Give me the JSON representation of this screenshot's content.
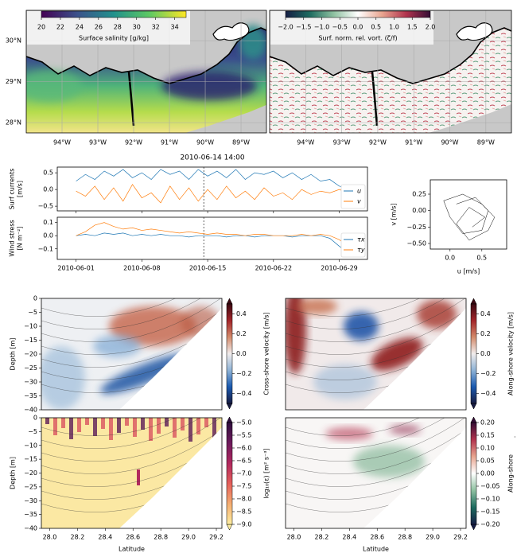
{
  "chart_data": [
    {
      "type": "map",
      "xlim": [
        -95,
        -88.29
      ],
      "ylim": [
        27.75,
        30.74
      ],
      "xticks": [
        {
          "value": -94,
          "label": "94°W"
        },
        {
          "value": -93,
          "label": "93°W"
        },
        {
          "value": -92,
          "label": "92°W"
        },
        {
          "value": -91,
          "label": "91°W"
        },
        {
          "value": -90,
          "label": "90°W"
        },
        {
          "value": -89,
          "label": "89°W"
        }
      ],
      "yticks": [
        {
          "value": 28,
          "label": "28°N"
        },
        {
          "value": 29,
          "label": "29°N"
        },
        {
          "value": 30,
          "label": "30°N"
        }
      ],
      "colorbar": {
        "label": "Surface salinity [g/kg]",
        "lim": [
          20,
          35.2
        ],
        "ticks": [
          20,
          22,
          24,
          26,
          28,
          30,
          32,
          34
        ],
        "colors": [
          "#440154",
          "#3b528b",
          "#21918c",
          "#5ec962",
          "#fde725"
        ]
      }
    },
    {
      "type": "map",
      "xlim": [
        -95,
        -88.29
      ],
      "xticks": [
        {
          "value": -94,
          "label": "94°W"
        },
        {
          "value": -93,
          "label": "93°W"
        },
        {
          "value": -92,
          "label": "92°W"
        },
        {
          "value": -91,
          "label": "91°W"
        },
        {
          "value": -90,
          "label": "90°W"
        },
        {
          "value": -89,
          "label": "89°W"
        }
      ],
      "colorbar": {
        "label": "Surf. norm. rel. vort. (ζ/f)",
        "lim": [
          -2,
          2
        ],
        "ticks": [
          {
            "value": -2,
            "label": "−2.0"
          },
          {
            "value": -1.5,
            "label": "−1.5"
          },
          {
            "value": -1,
            "label": "−1.0"
          },
          {
            "value": -0.5,
            "label": "−0.5"
          },
          {
            "value": 0,
            "label": "0.0"
          },
          0.5,
          {
            "value": 1,
            "label": "1.0"
          },
          1.5,
          {
            "value": 2,
            "label": "2.0"
          }
        ],
        "colors": [
          "#151d44",
          "#1d6b5f",
          "#8fc1a1",
          "#ffffff",
          "#e8a48f",
          "#b1334e",
          "#340d35"
        ]
      }
    },
    {
      "type": "line",
      "title": "2010-06-14 14:00",
      "ylabel": [
        "Surf currents",
        "[m/s]"
      ],
      "legend": "lower right",
      "xlim": [
        "2010-05-30",
        "2010-07-02"
      ],
      "ylim": [
        -0.64,
        0.67
      ],
      "yticks": [
        0.5,
        {
          "value": 0,
          "label": "0.0"
        },
        {
          "value": -0.5,
          "label": "−0.5"
        }
      ],
      "x": [
        "2010-06-01",
        "2010-06-02",
        "2010-06-03",
        "2010-06-04",
        "2010-06-05",
        "2010-06-06",
        "2010-06-07",
        "2010-06-08",
        "2010-06-09",
        "2010-06-10",
        "2010-06-11",
        "2010-06-12",
        "2010-06-13",
        "2010-06-14",
        "2010-06-15",
        "2010-06-16",
        "2010-06-17",
        "2010-06-18",
        "2010-06-19",
        "2010-06-20",
        "2010-06-21",
        "2010-06-22",
        "2010-06-23",
        "2010-06-24",
        "2010-06-25",
        "2010-06-26",
        "2010-06-27",
        "2010-06-28",
        "2010-06-29",
        "2010-06-30",
        "2010-07-01"
      ],
      "series": [
        {
          "name": "u",
          "color": "#1f77b4",
          "values": [
            0.25,
            0.45,
            0.3,
            0.55,
            0.4,
            0.6,
            0.35,
            0.5,
            0.3,
            0.6,
            0.45,
            0.55,
            0.3,
            0.6,
            0.4,
            0.55,
            0.35,
            0.6,
            0.3,
            0.5,
            0.45,
            0.55,
            0.35,
            0.5,
            0.3,
            0.45,
            0.25,
            0.3,
            0.1,
            0.05,
            -0.05
          ]
        },
        {
          "name": "v",
          "color": "#ff7f0e",
          "values": [
            -0.05,
            -0.2,
            0.1,
            -0.3,
            0.05,
            -0.35,
            0.15,
            -0.25,
            -0.1,
            -0.4,
            0.1,
            -0.3,
            0.05,
            -0.35,
            0.0,
            -0.3,
            0.1,
            -0.25,
            -0.05,
            -0.3,
            0.05,
            -0.2,
            -0.1,
            -0.3,
            0.0,
            -0.15,
            -0.05,
            -0.1,
            0.0,
            -0.1,
            -0.05
          ]
        }
      ]
    },
    {
      "type": "line",
      "ylabel": [
        "Wind stress",
        "[N m⁻²]"
      ],
      "legend": "lower right",
      "xlim": [
        "2010-05-30",
        "2010-07-02"
      ],
      "ylim": [
        -0.18,
        0.14
      ],
      "yticks": [
        0.1,
        {
          "value": 0,
          "label": "0.0"
        },
        {
          "value": -0.1,
          "label": "−0.1"
        }
      ],
      "xticks": [
        "2010-06-01",
        "2010-06-08",
        "2010-06-15",
        "2010-06-22",
        "2010-06-29"
      ],
      "x": [
        "2010-06-01",
        "2010-06-02",
        "2010-06-03",
        "2010-06-04",
        "2010-06-05",
        "2010-06-06",
        "2010-06-07",
        "2010-06-08",
        "2010-06-09",
        "2010-06-10",
        "2010-06-11",
        "2010-06-12",
        "2010-06-13",
        "2010-06-14",
        "2010-06-15",
        "2010-06-16",
        "2010-06-17",
        "2010-06-18",
        "2010-06-19",
        "2010-06-20",
        "2010-06-21",
        "2010-06-22",
        "2010-06-23",
        "2010-06-24",
        "2010-06-25",
        "2010-06-26",
        "2010-06-27",
        "2010-06-28",
        "2010-06-29",
        "2010-06-30",
        "2010-07-01"
      ],
      "series": [
        {
          "name": "τx",
          "color": "#1f77b4",
          "values": [
            0.0,
            0.01,
            0.0,
            0.02,
            0.01,
            0.02,
            0.0,
            0.01,
            0.0,
            0.01,
            0.0,
            0.0,
            -0.01,
            0.0,
            0.0,
            0.0,
            -0.01,
            0.0,
            0.0,
            -0.01,
            0.0,
            0.0,
            0.0,
            -0.01,
            0.0,
            0.0,
            0.0,
            -0.02,
            -0.08,
            -0.13,
            -0.12
          ]
        },
        {
          "name": "τy",
          "color": "#ff7f0e",
          "values": [
            0.0,
            0.03,
            0.08,
            0.1,
            0.07,
            0.05,
            0.06,
            0.04,
            0.05,
            0.04,
            0.03,
            0.02,
            0.03,
            0.02,
            0.01,
            0.02,
            0.01,
            0.01,
            0.0,
            0.01,
            0.01,
            0.0,
            0.0,
            0.0,
            0.01,
            0.0,
            0.01,
            0.0,
            -0.03,
            -0.08,
            -0.1
          ]
        }
      ]
    },
    {
      "type": "line",
      "xlabel": "u [m/s]",
      "ylabel": [
        "v [m/s]"
      ],
      "xlim": [
        -0.31,
        0.89
      ],
      "ylim": [
        -0.585,
        0.468
      ],
      "xticks": [
        {
          "value": 0,
          "label": "0.0"
        },
        0.5
      ],
      "yticks": [
        0.25,
        {
          "value": 0,
          "label": "0.00"
        },
        {
          "value": -0.25,
          "label": "−0.25"
        },
        {
          "value": -0.5,
          "label": "−0.50"
        }
      ],
      "x": [
        0.1,
        0.4,
        0.6,
        0.5,
        0.2,
        0.0,
        -0.1,
        0.2,
        0.5,
        0.7,
        0.6,
        0.3,
        0.1,
        0.3,
        0.55,
        0.35
      ],
      "series": [
        {
          "color": "#000000",
          "values": [
            0.1,
            0.2,
            0.0,
            -0.3,
            -0.35,
            -0.1,
            0.15,
            0.25,
            0.1,
            -0.1,
            -0.3,
            -0.45,
            -0.2,
            0.05,
            -0.1,
            -0.25
          ]
        }
      ]
    },
    {
      "type": "heatmap",
      "ylabel": "Depth [m]",
      "ylim": [
        -40,
        0
      ],
      "yticks": [
        0,
        {
          "value": -5,
          "label": "−5"
        },
        {
          "value": -10,
          "label": "−10"
        },
        {
          "value": -15,
          "label": "−15"
        },
        {
          "value": -20,
          "label": "−20"
        },
        {
          "value": -25,
          "label": "−25"
        },
        {
          "value": -30,
          "label": "−30"
        },
        {
          "value": -35,
          "label": "−35"
        },
        {
          "value": -40,
          "label": "−40"
        }
      ],
      "colorbar": {
        "label": "Cross-shore velocity [m/s]",
        "lim": [
          -0.5,
          0.5
        ],
        "ticks": [
          0.4,
          0.2,
          {
            "value": 0,
            "label": "0.0"
          },
          {
            "value": -0.2,
            "label": "−0.2"
          },
          {
            "value": -0.4,
            "label": "−0.4"
          }
        ],
        "colors": [
          "#181c43",
          "#1a5ab0",
          "#8fb3d6",
          "#f1ecec",
          "#d38a6b",
          "#a3252a",
          "#3c0912"
        ]
      }
    },
    {
      "type": "heatmap",
      "colorbar": {
        "label": "Along-shore velocity [m/s]",
        "lim": [
          -0.5,
          0.5
        ],
        "ticks": [
          0.4,
          0.2,
          {
            "value": 0,
            "label": "0.0"
          },
          {
            "value": -0.2,
            "label": "−0.2"
          },
          {
            "value": -0.4,
            "label": "−0.4"
          }
        ],
        "colors": [
          "#181c43",
          "#1a5ab0",
          "#8fb3d6",
          "#f1ecec",
          "#d38a6b",
          "#a3252a",
          "#3c0912"
        ]
      }
    },
    {
      "type": "heatmap",
      "ylabel": "Depth [m]",
      "xlabel": "Latitude",
      "xlim": [
        27.94,
        29.24
      ],
      "ylim": [
        -40,
        0
      ],
      "xticks": [
        {
          "value": 28,
          "label": "28.0"
        },
        28.2,
        28.4,
        28.6,
        28.8,
        {
          "value": 29,
          "label": "29.0"
        },
        29.2
      ],
      "yticks": [
        0,
        {
          "value": -5,
          "label": "−5"
        },
        {
          "value": -10,
          "label": "−10"
        },
        {
          "value": -15,
          "label": "−15"
        },
        {
          "value": -20,
          "label": "−20"
        },
        {
          "value": -25,
          "label": "−25"
        },
        {
          "value": -30,
          "label": "−30"
        },
        {
          "value": -35,
          "label": "−35"
        },
        {
          "value": -40,
          "label": "−40"
        }
      ],
      "colorbar": {
        "label": "log₁₀(ε) [m² s⁻³]",
        "lim": [
          -9,
          -5
        ],
        "ticks": [
          {
            "value": -5,
            "label": "−5.0"
          },
          {
            "value": -5.5,
            "label": "−5.5"
          },
          {
            "value": -6,
            "label": "−6.0"
          },
          {
            "value": -6.5,
            "label": "−6.5"
          },
          {
            "value": -7,
            "label": "−7.0"
          },
          {
            "value": -7.5,
            "label": "−7.5"
          },
          {
            "value": -8,
            "label": "−8.0"
          },
          {
            "value": -8.5,
            "label": "−8.5"
          },
          {
            "value": -9,
            "label": "−9.0"
          }
        ],
        "colors": [
          "#fdeda0",
          "#f4ad71",
          "#e5605b",
          "#b2285f",
          "#6d1a5c",
          "#2f0f3d"
        ]
      }
    },
    {
      "type": "heatmap",
      "xlabel": "Latitude",
      "xlim": [
        27.94,
        29.24
      ],
      "annotation": ".",
      "xticks": [
        {
          "value": 28,
          "label": "28.0"
        },
        28.2,
        28.4,
        28.6,
        28.8,
        {
          "value": 29,
          "label": "29.0"
        },
        29.2
      ],
      "colorbar": {
        "label": "Along-shore",
        "lim": [
          -0.2,
          0.2
        ],
        "ticks": [
          {
            "value": 0.2,
            "label": "0.20"
          },
          0.15,
          {
            "value": 0.1,
            "label": "0.10"
          },
          0.05,
          {
            "value": 0,
            "label": "0.00"
          },
          {
            "value": -0.05,
            "label": "−0.05"
          },
          {
            "value": -0.1,
            "label": "−0.10"
          },
          {
            "value": -0.15,
            "label": "−0.15"
          },
          {
            "value": -0.2,
            "label": "−0.20"
          }
        ],
        "colors": [
          "#151d44",
          "#1d6b5f",
          "#8fc1a1",
          "#ffffff",
          "#e8a48f",
          "#b1334e",
          "#340d35"
        ]
      }
    }
  ]
}
